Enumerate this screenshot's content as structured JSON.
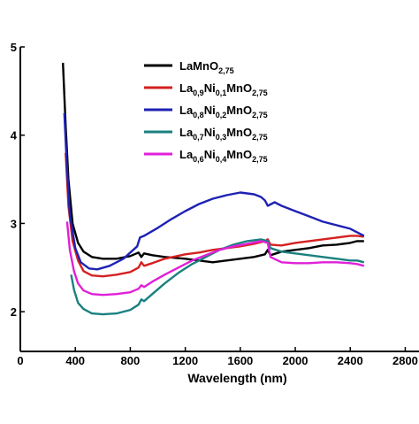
{
  "chart_data": {
    "type": "line",
    "title": "",
    "xlabel": "Wavelength (nm)",
    "ylabel": "",
    "xlim": [
      0,
      2900
    ],
    "ylim": [
      1.55,
      5
    ],
    "x_ticks": [
      0,
      400,
      800,
      1200,
      1600,
      2000,
      2400,
      2800
    ],
    "y_ticks": [
      2,
      3,
      4,
      5
    ],
    "grid": false,
    "legend_position": "top-right",
    "series": [
      {
        "name_parts": [
          [
            "LaMnO",
            "n"
          ],
          [
            "2,75",
            "s"
          ]
        ],
        "color": "#000000",
        "points": [
          [
            310,
            4.82
          ],
          [
            330,
            4.1
          ],
          [
            350,
            3.5
          ],
          [
            380,
            3.0
          ],
          [
            420,
            2.78
          ],
          [
            460,
            2.68
          ],
          [
            520,
            2.62
          ],
          [
            600,
            2.6
          ],
          [
            700,
            2.6
          ],
          [
            800,
            2.63
          ],
          [
            860,
            2.67
          ],
          [
            880,
            2.62
          ],
          [
            900,
            2.66
          ],
          [
            960,
            2.64
          ],
          [
            1050,
            2.62
          ],
          [
            1200,
            2.6
          ],
          [
            1300,
            2.58
          ],
          [
            1400,
            2.56
          ],
          [
            1500,
            2.58
          ],
          [
            1600,
            2.6
          ],
          [
            1700,
            2.62
          ],
          [
            1780,
            2.65
          ],
          [
            1800,
            2.7
          ],
          [
            1820,
            2.64
          ],
          [
            1900,
            2.68
          ],
          [
            2000,
            2.7
          ],
          [
            2100,
            2.72
          ],
          [
            2200,
            2.75
          ],
          [
            2300,
            2.76
          ],
          [
            2400,
            2.78
          ],
          [
            2450,
            2.8
          ],
          [
            2500,
            2.8
          ]
        ]
      },
      {
        "name_parts": [
          [
            "La",
            "n"
          ],
          [
            "0,9",
            "s"
          ],
          [
            "Ni",
            "n"
          ],
          [
            "0,1",
            "s"
          ],
          [
            "MnO",
            "n"
          ],
          [
            "2,75",
            "s"
          ]
        ],
        "color": "#d62020",
        "points": [
          [
            330,
            3.8
          ],
          [
            350,
            3.2
          ],
          [
            380,
            2.8
          ],
          [
            420,
            2.58
          ],
          [
            460,
            2.46
          ],
          [
            520,
            2.41
          ],
          [
            600,
            2.4
          ],
          [
            700,
            2.42
          ],
          [
            800,
            2.45
          ],
          [
            860,
            2.5
          ],
          [
            880,
            2.56
          ],
          [
            900,
            2.52
          ],
          [
            960,
            2.55
          ],
          [
            1050,
            2.6
          ],
          [
            1200,
            2.65
          ],
          [
            1300,
            2.67
          ],
          [
            1400,
            2.7
          ],
          [
            1500,
            2.72
          ],
          [
            1600,
            2.74
          ],
          [
            1700,
            2.77
          ],
          [
            1780,
            2.8
          ],
          [
            1800,
            2.82
          ],
          [
            1820,
            2.76
          ],
          [
            1900,
            2.75
          ],
          [
            2000,
            2.78
          ],
          [
            2100,
            2.8
          ],
          [
            2200,
            2.82
          ],
          [
            2300,
            2.84
          ],
          [
            2400,
            2.86
          ],
          [
            2450,
            2.86
          ],
          [
            2500,
            2.85
          ]
        ]
      },
      {
        "name_parts": [
          [
            "La",
            "n"
          ],
          [
            "0,8",
            "s"
          ],
          [
            "Ni",
            "n"
          ],
          [
            "0,2",
            "s"
          ],
          [
            "MnO",
            "n"
          ],
          [
            "2,75",
            "s"
          ]
        ],
        "color": "#1e22b4",
        "points": [
          [
            320,
            4.25
          ],
          [
            340,
            3.6
          ],
          [
            360,
            3.1
          ],
          [
            400,
            2.72
          ],
          [
            440,
            2.56
          ],
          [
            500,
            2.49
          ],
          [
            560,
            2.48
          ],
          [
            650,
            2.52
          ],
          [
            750,
            2.6
          ],
          [
            850,
            2.74
          ],
          [
            870,
            2.84
          ],
          [
            900,
            2.86
          ],
          [
            1000,
            2.95
          ],
          [
            1100,
            3.05
          ],
          [
            1200,
            3.14
          ],
          [
            1300,
            3.22
          ],
          [
            1400,
            3.28
          ],
          [
            1500,
            3.32
          ],
          [
            1600,
            3.35
          ],
          [
            1700,
            3.33
          ],
          [
            1750,
            3.3
          ],
          [
            1780,
            3.26
          ],
          [
            1800,
            3.2
          ],
          [
            1850,
            3.24
          ],
          [
            1900,
            3.2
          ],
          [
            2000,
            3.14
          ],
          [
            2100,
            3.08
          ],
          [
            2200,
            3.02
          ],
          [
            2300,
            2.98
          ],
          [
            2400,
            2.94
          ],
          [
            2450,
            2.9
          ],
          [
            2500,
            2.86
          ]
        ]
      },
      {
        "name_parts": [
          [
            "La",
            "n"
          ],
          [
            "0,7",
            "s"
          ],
          [
            "Ni",
            "n"
          ],
          [
            "0,3",
            "s"
          ],
          [
            "MnO",
            "n"
          ],
          [
            "2,75",
            "s"
          ]
        ],
        "color": "#1a8080",
        "points": [
          [
            370,
            2.42
          ],
          [
            390,
            2.25
          ],
          [
            420,
            2.1
          ],
          [
            460,
            2.03
          ],
          [
            520,
            1.98
          ],
          [
            600,
            1.97
          ],
          [
            700,
            1.98
          ],
          [
            800,
            2.02
          ],
          [
            860,
            2.08
          ],
          [
            880,
            2.14
          ],
          [
            900,
            2.12
          ],
          [
            960,
            2.2
          ],
          [
            1050,
            2.32
          ],
          [
            1150,
            2.44
          ],
          [
            1250,
            2.54
          ],
          [
            1350,
            2.62
          ],
          [
            1450,
            2.7
          ],
          [
            1550,
            2.76
          ],
          [
            1650,
            2.8
          ],
          [
            1750,
            2.82
          ],
          [
            1800,
            2.8
          ],
          [
            1820,
            2.72
          ],
          [
            1900,
            2.68
          ],
          [
            2000,
            2.66
          ],
          [
            2100,
            2.64
          ],
          [
            2200,
            2.62
          ],
          [
            2300,
            2.6
          ],
          [
            2400,
            2.58
          ],
          [
            2450,
            2.58
          ],
          [
            2500,
            2.56
          ]
        ]
      },
      {
        "name_parts": [
          [
            "La",
            "n"
          ],
          [
            "0,6",
            "s"
          ],
          [
            "Ni",
            "n"
          ],
          [
            "0,4",
            "s"
          ],
          [
            "MnO",
            "n"
          ],
          [
            "2,75",
            "s"
          ]
        ],
        "color": "#e020d8",
        "points": [
          [
            340,
            3.02
          ],
          [
            360,
            2.7
          ],
          [
            390,
            2.46
          ],
          [
            420,
            2.32
          ],
          [
            460,
            2.24
          ],
          [
            520,
            2.2
          ],
          [
            600,
            2.19
          ],
          [
            700,
            2.2
          ],
          [
            800,
            2.22
          ],
          [
            860,
            2.26
          ],
          [
            880,
            2.3
          ],
          [
            900,
            2.28
          ],
          [
            960,
            2.34
          ],
          [
            1050,
            2.42
          ],
          [
            1150,
            2.5
          ],
          [
            1250,
            2.58
          ],
          [
            1350,
            2.64
          ],
          [
            1450,
            2.7
          ],
          [
            1550,
            2.74
          ],
          [
            1650,
            2.77
          ],
          [
            1750,
            2.8
          ],
          [
            1800,
            2.78
          ],
          [
            1820,
            2.62
          ],
          [
            1900,
            2.56
          ],
          [
            2000,
            2.55
          ],
          [
            2100,
            2.55
          ],
          [
            2200,
            2.56
          ],
          [
            2300,
            2.56
          ],
          [
            2400,
            2.55
          ],
          [
            2450,
            2.54
          ],
          [
            2500,
            2.52
          ]
        ]
      }
    ]
  }
}
